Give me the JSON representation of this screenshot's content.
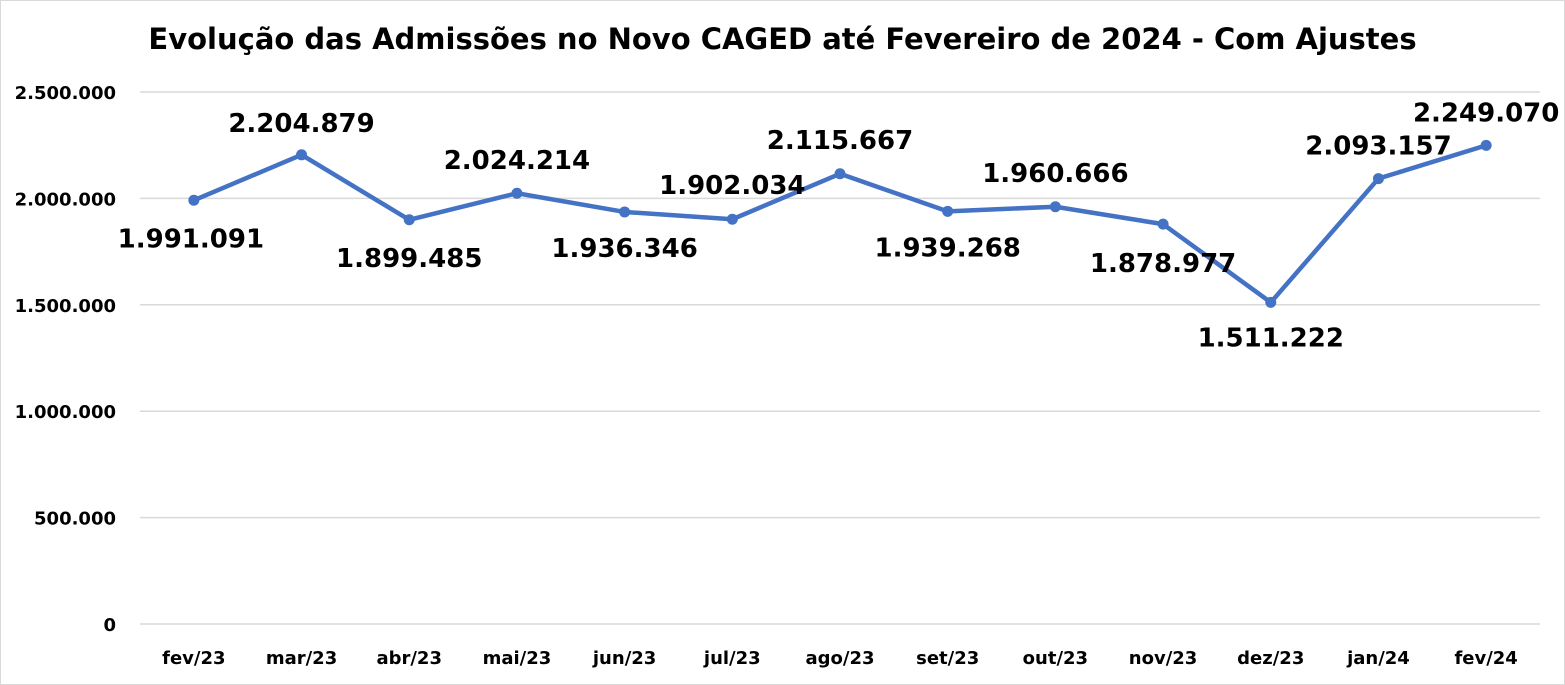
{
  "chart_data": {
    "type": "line",
    "title": "Evolução das Admissões no Novo CAGED até Fevereiro de 2024 - Com Ajustes",
    "xlabel": "",
    "ylabel": "",
    "categories": [
      "fev/23",
      "mar/23",
      "abr/23",
      "mai/23",
      "jun/23",
      "jul/23",
      "ago/23",
      "set/23",
      "out/23",
      "nov/23",
      "dez/23",
      "jan/24",
      "fev/24"
    ],
    "values": [
      1991091,
      2204879,
      1899485,
      2024214,
      1936346,
      1902034,
      2115667,
      1939268,
      1960666,
      1878977,
      1511222,
      2093157,
      2249070
    ],
    "data_labels": [
      "1.991.091",
      "2.204.879",
      "1.899.485",
      "2.024.214",
      "1.936.346",
      "1.902.034",
      "2.115.667",
      "1.939.268",
      "1.960.666",
      "1.878.977",
      "1.511.222",
      "2.093.157",
      "2.249.070"
    ],
    "ylim": [
      0,
      2500000
    ],
    "yticks": [
      0,
      500000,
      1000000,
      1500000,
      2000000,
      2500000
    ],
    "ytick_labels": [
      "0",
      "500.000",
      "1.000.000",
      "1.500.000",
      "2.000.000",
      "2.500.000"
    ],
    "grid": "horizontal",
    "legend": "none",
    "line_color": "#4472C4"
  }
}
